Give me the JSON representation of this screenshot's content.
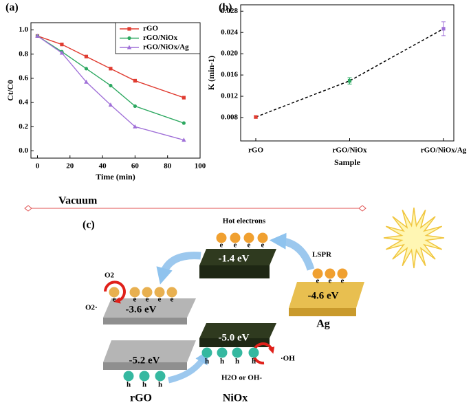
{
  "chart_data": [
    {
      "type": "line",
      "title": "(a)",
      "xlabel": "Time (min)",
      "ylabel": "Ct/C0",
      "x": [
        0,
        15,
        30,
        45,
        60,
        90
      ],
      "series": [
        {
          "name": "rGO",
          "color": "#e03c31",
          "marker": "square",
          "values": [
            0.95,
            0.88,
            0.78,
            0.68,
            0.58,
            0.44
          ]
        },
        {
          "name": "rGO/NiOx",
          "color": "#2ca860",
          "marker": "circle",
          "values": [
            0.95,
            0.82,
            0.68,
            0.54,
            0.37,
            0.23
          ]
        },
        {
          "name": "rGO/NiOx/Ag",
          "color": "#a070d8",
          "marker": "triangle",
          "values": [
            0.95,
            0.81,
            0.57,
            0.38,
            0.2,
            0.09
          ]
        }
      ],
      "xlim": [
        -4,
        100
      ],
      "xticks": [
        0,
        20,
        40,
        60,
        80,
        100
      ],
      "ylim": [
        -0.06,
        1.06
      ],
      "yticks": [
        {
          "value": 0,
          "label": "0.0"
        },
        0.2,
        0.4,
        0.6,
        0.8,
        {
          "value": 1,
          "label": "1.0"
        }
      ],
      "legend": "upper right"
    },
    {
      "type": "line",
      "title": "(b)",
      "xlabel": "Sample",
      "ylabel": "K (min-1)",
      "categories": [
        "rGO",
        "rGO/NiOx",
        "rGO/NiOx/Ag"
      ],
      "values": [
        0.0081,
        0.0149,
        0.0247
      ],
      "errors": [
        0.0002,
        0.0006,
        0.0013
      ],
      "colors": [
        "#e03c31",
        "#2ca860",
        "#a070d8"
      ],
      "line_color": "#000000",
      "dashed": true,
      "ylim": [
        0.0036,
        0.0292
      ],
      "yticks": [
        0.008,
        0.012,
        0.016,
        {
          "value": 0.02,
          "label": "0.020"
        },
        0.024,
        0.028
      ]
    }
  ],
  "diagram": {
    "title": "(c)",
    "vacuum": "Vacuum",
    "hot_electrons": "Hot electrons",
    "lspr": "LSPR",
    "electron": "e",
    "hole": "h",
    "levels": [
      "-1.4 eV",
      "-4.6 eV",
      "-3.6 eV",
      "-5.2 eV",
      "-5.0 eV"
    ],
    "materials": [
      "rGO",
      "NiOx",
      "Ag"
    ],
    "o2": "O2",
    "o2_radical": "O2·",
    "oh_radical": "·OH",
    "water": "H2O or OH-"
  }
}
